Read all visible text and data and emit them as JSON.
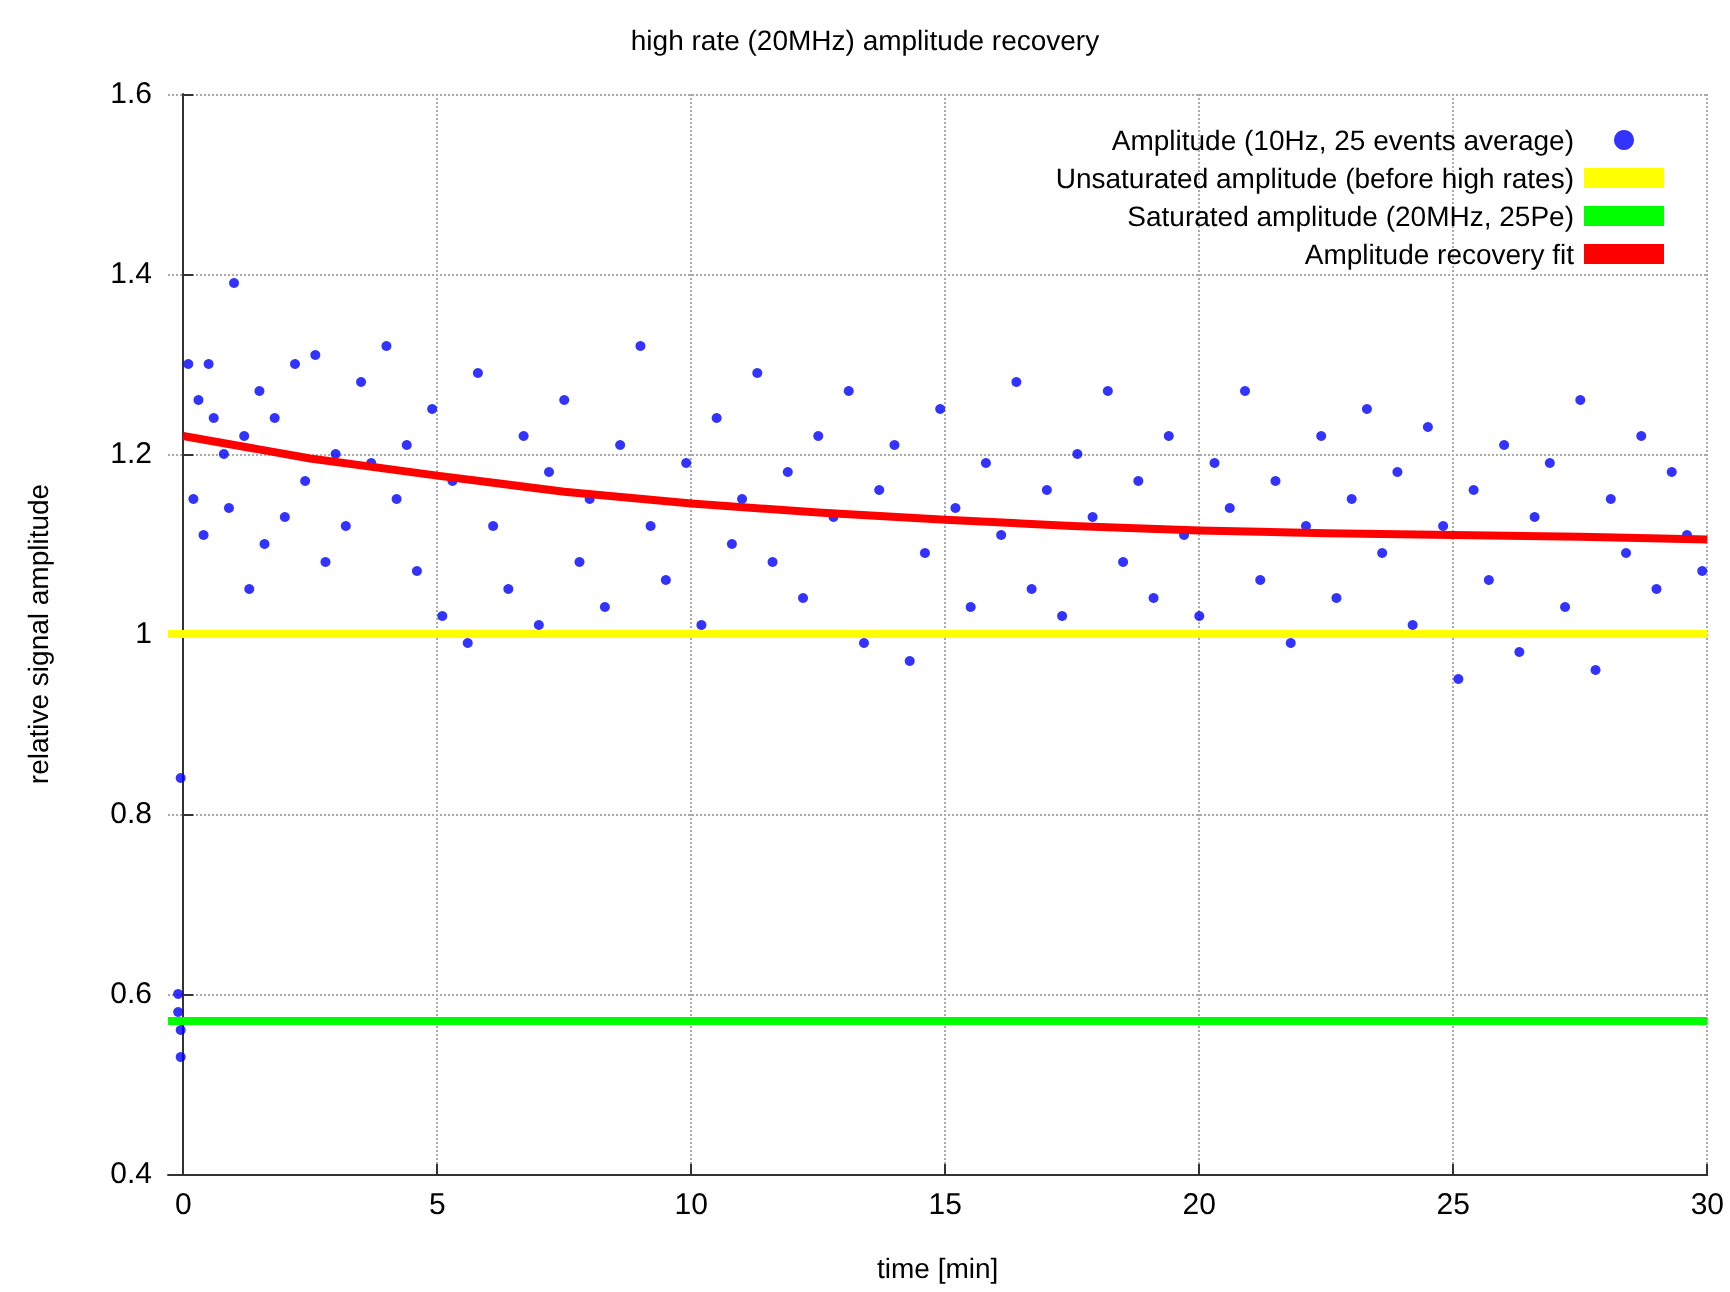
{
  "chart_data": {
    "type": "scatter",
    "title": "high rate (20MHz) amplitude recovery",
    "xlabel": "time [min]",
    "ylabel": "relative signal amplitude",
    "xlim": [
      -0.3,
      30
    ],
    "xticks": [
      0,
      5,
      10,
      15,
      20,
      25,
      30
    ],
    "ylim": [
      0.4,
      1.6
    ],
    "yticks": [
      {
        "value": 0.4,
        "label": "0.4"
      },
      {
        "value": 0.6,
        "label": "0.6"
      },
      {
        "value": 0.8,
        "label": "0.8"
      },
      {
        "value": 1,
        "label": "1"
      },
      {
        "value": 1.2,
        "label": "1.2"
      },
      {
        "value": 1.4,
        "label": "1.4"
      },
      {
        "value": 1.6,
        "label": "1.6"
      }
    ],
    "grid": true,
    "legend": "top right",
    "series": [
      {
        "name": "Amplitude (10Hz, 25 events average)",
        "marker": "circle",
        "color": "#0000ff",
        "x": [
          -0.1,
          -0.1,
          -0.05,
          -0.05,
          -0.05,
          0.1,
          0.2,
          0.3,
          0.4,
          0.5,
          0.6,
          0.8,
          0.9,
          1.0,
          1.2,
          1.3,
          1.5,
          1.6,
          1.8,
          2.0,
          2.2,
          2.4,
          2.6,
          2.8,
          3.0,
          3.2,
          3.5,
          3.7,
          4.0,
          4.2,
          4.4,
          4.6,
          4.9,
          5.1,
          5.3,
          5.6,
          5.8,
          6.1,
          6.4,
          6.7,
          7.0,
          7.2,
          7.5,
          7.8,
          8.0,
          8.3,
          8.6,
          9.0,
          9.2,
          9.5,
          9.9,
          10.2,
          10.5,
          10.8,
          11.0,
          11.3,
          11.6,
          11.9,
          12.2,
          12.5,
          12.8,
          13.1,
          13.4,
          13.7,
          14.0,
          14.3,
          14.6,
          14.9,
          15.2,
          15.5,
          15.8,
          16.1,
          16.4,
          16.7,
          17.0,
          17.3,
          17.6,
          17.9,
          18.2,
          18.5,
          18.8,
          19.1,
          19.4,
          19.7,
          20.0,
          20.3,
          20.6,
          20.9,
          21.2,
          21.5,
          21.8,
          22.1,
          22.4,
          22.7,
          23.0,
          23.3,
          23.6,
          23.9,
          24.2,
          24.5,
          24.8,
          25.1,
          25.4,
          25.7,
          26.0,
          26.3,
          26.6,
          26.9,
          27.2,
          27.5,
          27.8,
          28.1,
          28.4,
          28.7,
          29.0,
          29.3,
          29.6,
          29.9
        ],
        "values": [
          0.6,
          0.58,
          0.56,
          0.53,
          0.84,
          1.3,
          1.15,
          1.26,
          1.11,
          1.3,
          1.24,
          1.2,
          1.14,
          1.39,
          1.22,
          1.05,
          1.27,
          1.1,
          1.24,
          1.13,
          1.3,
          1.17,
          1.31,
          1.08,
          1.2,
          1.12,
          1.28,
          1.19,
          1.32,
          1.15,
          1.21,
          1.07,
          1.25,
          1.02,
          1.17,
          0.99,
          1.29,
          1.12,
          1.05,
          1.22,
          1.01,
          1.18,
          1.26,
          1.08,
          1.15,
          1.03,
          1.21,
          1.32,
          1.12,
          1.06,
          1.19,
          1.01,
          1.24,
          1.1,
          1.15,
          1.29,
          1.08,
          1.18,
          1.04,
          1.22,
          1.13,
          1.27,
          0.99,
          1.16,
          1.21,
          0.97,
          1.09,
          1.25,
          1.14,
          1.03,
          1.19,
          1.11,
          1.28,
          1.05,
          1.16,
          1.02,
          1.2,
          1.13,
          1.27,
          1.08,
          1.17,
          1.04,
          1.22,
          1.11,
          1.02,
          1.19,
          1.14,
          1.27,
          1.06,
          1.17,
          0.99,
          1.12,
          1.22,
          1.04,
          1.15,
          1.25,
          1.09,
          1.18,
          1.01,
          1.23,
          1.12,
          0.95,
          1.16,
          1.06,
          1.21,
          0.98,
          1.13,
          1.19,
          1.03,
          1.26,
          0.96,
          1.15,
          1.09,
          1.22,
          1.05,
          1.18,
          1.11,
          1.07
        ]
      },
      {
        "name": "Unsaturated amplitude (before high rates)",
        "type": "line",
        "marker": "none",
        "color": "#ffff00",
        "x": [
          -0.3,
          30
        ],
        "values": [
          1,
          1
        ]
      },
      {
        "name": "Saturated amplitude (20MHz, 25Pe)",
        "type": "line",
        "marker": "none",
        "color": "#00ff00",
        "x": [
          -0.3,
          30
        ],
        "values": [
          0.57,
          0.57
        ]
      },
      {
        "name": "Amplitude recovery fit",
        "type": "line",
        "marker": "none",
        "color": "#ff0000",
        "x": [
          0,
          2.5,
          5,
          7.5,
          10,
          12.5,
          15,
          17.5,
          20,
          22.5,
          25,
          27.5,
          30
        ],
        "values": [
          1.22,
          1.195,
          1.176,
          1.158,
          1.145,
          1.135,
          1.127,
          1.12,
          1.115,
          1.112,
          1.11,
          1.108,
          1.105
        ]
      }
    ]
  }
}
